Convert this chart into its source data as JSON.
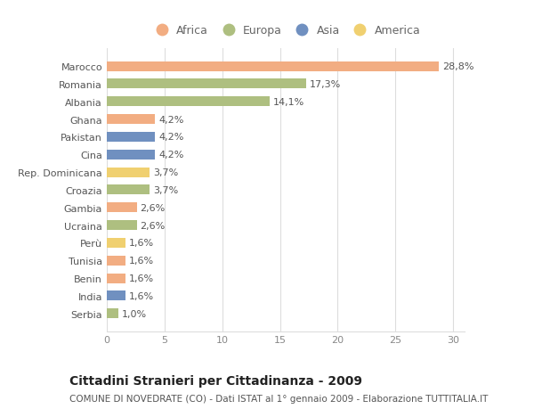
{
  "categories": [
    "Marocco",
    "Romania",
    "Albania",
    "Ghana",
    "Pakistan",
    "Cina",
    "Rep. Dominicana",
    "Croazia",
    "Gambia",
    "Ucraina",
    "Perù",
    "Tunisia",
    "Benin",
    "India",
    "Serbia"
  ],
  "values": [
    28.8,
    17.3,
    14.1,
    4.2,
    4.2,
    4.2,
    3.7,
    3.7,
    2.6,
    2.6,
    1.6,
    1.6,
    1.6,
    1.6,
    1.0
  ],
  "labels": [
    "28,8%",
    "17,3%",
    "14,1%",
    "4,2%",
    "4,2%",
    "4,2%",
    "3,7%",
    "3,7%",
    "2,6%",
    "2,6%",
    "1,6%",
    "1,6%",
    "1,6%",
    "1,6%",
    "1,0%"
  ],
  "continents": [
    "Africa",
    "Europa",
    "Europa",
    "Africa",
    "Asia",
    "Asia",
    "America",
    "Europa",
    "Africa",
    "Europa",
    "America",
    "Africa",
    "Africa",
    "Asia",
    "Europa"
  ],
  "continent_colors": {
    "Africa": "#F2AD82",
    "Europa": "#AEBF80",
    "Asia": "#7090C0",
    "America": "#F0D070"
  },
  "legend_order": [
    "Africa",
    "Europa",
    "Asia",
    "America"
  ],
  "title": "Cittadini Stranieri per Cittadinanza - 2009",
  "subtitle": "COMUNE DI NOVEDRATE (CO) - Dati ISTAT al 1° gennaio 2009 - Elaborazione TUTTITALIA.IT",
  "xlim": [
    0,
    31
  ],
  "xticks": [
    0,
    5,
    10,
    15,
    20,
    25,
    30
  ],
  "figure_bg": "#FFFFFF",
  "plot_bg": "#FFFFFF",
  "grid_color": "#DDDDDD",
  "title_fontsize": 10,
  "subtitle_fontsize": 7.5,
  "label_fontsize": 8,
  "tick_fontsize": 8,
  "legend_fontsize": 9
}
